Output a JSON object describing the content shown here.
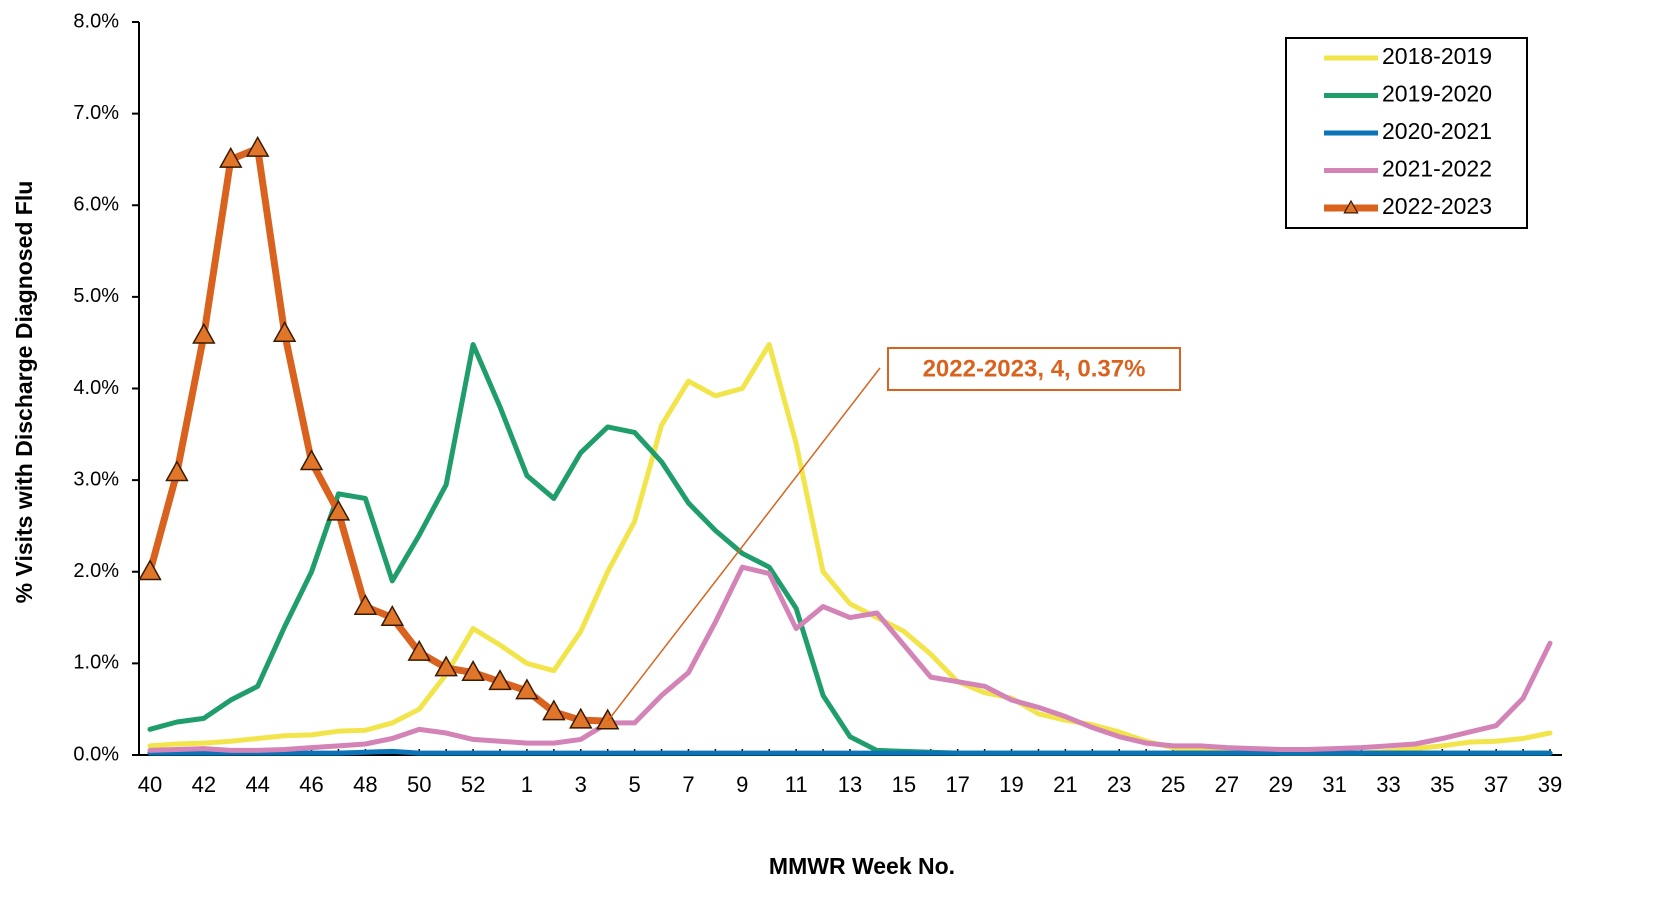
{
  "chart_data": {
    "type": "line",
    "y_label": "% Visits with Discharge Diagnosed Flu",
    "x_label": "MMWR Week No.",
    "annotation": "2022-2023, 4, 0.37%",
    "categories": [
      "40",
      null,
      "42",
      null,
      "44",
      null,
      "46",
      null,
      "48",
      null,
      "50",
      null,
      "52",
      null,
      "1",
      null,
      "3",
      null,
      "5",
      null,
      "7",
      null,
      "9",
      null,
      "11",
      null,
      "13",
      null,
      "15",
      null,
      "17",
      null,
      "19",
      null,
      "21",
      null,
      "23",
      null,
      "25",
      null,
      "27",
      null,
      "29",
      null,
      "31",
      null,
      "33",
      null,
      "35",
      null,
      "37",
      null,
      "39"
    ],
    "ylim": [
      0,
      8
    ],
    "yticks": [
      {
        "value": 0,
        "label": "0.0%"
      },
      {
        "value": 1,
        "label": "1.0%"
      },
      {
        "value": 2,
        "label": "2.0%"
      },
      {
        "value": 3,
        "label": "3.0%"
      },
      {
        "value": 4,
        "label": "4.0%"
      },
      {
        "value": 5,
        "label": "5.0%"
      },
      {
        "value": 6,
        "label": "6.0%"
      },
      {
        "value": 7,
        "label": "7.0%"
      },
      {
        "value": 8,
        "label": "8.0%"
      }
    ],
    "legend": "upper right",
    "series": [
      {
        "name": "2018-2019",
        "color": "#f2e54b",
        "values": [
          0.1,
          0.12,
          0.13,
          0.15,
          0.18,
          0.21,
          0.22,
          0.26,
          0.27,
          0.35,
          0.5,
          0.88,
          1.38,
          1.2,
          1.0,
          0.92,
          1.35,
          2.0,
          2.55,
          3.6,
          4.08,
          3.92,
          4.0,
          4.48,
          3.4,
          2.0,
          1.65,
          1.5,
          1.35,
          1.1,
          0.8,
          0.68,
          0.62,
          0.45,
          0.38,
          0.33,
          0.25,
          0.15,
          0.08,
          0.05,
          0.04,
          0.03,
          0.02,
          0.02,
          0.02,
          0.02,
          0.04,
          0.07,
          0.1,
          0.14,
          0.15,
          0.18,
          0.24
        ]
      },
      {
        "name": "2019-2020",
        "color": "#1f9e6b",
        "values": [
          0.28,
          0.36,
          0.4,
          0.6,
          0.75,
          1.4,
          2.0,
          2.85,
          2.8,
          1.9,
          2.4,
          2.95,
          4.48,
          3.8,
          3.05,
          2.8,
          3.3,
          3.58,
          3.52,
          3.2,
          2.75,
          2.45,
          2.2,
          2.05,
          1.6,
          0.65,
          0.2,
          0.05,
          0.04,
          0.03,
          0.02,
          0.02,
          0.02,
          0.02,
          0.02,
          0.02,
          0.02,
          0.02,
          0.02,
          0.02,
          0.02,
          0.02,
          0.02,
          0.02,
          0.02,
          0.02,
          0.02,
          0.02,
          0.02,
          0.02,
          0.02,
          0.02,
          0.02
        ]
      },
      {
        "name": "2020-2021",
        "color": "#0b73b7",
        "values": [
          0.02,
          0.02,
          0.02,
          0.02,
          0.02,
          0.02,
          0.02,
          0.02,
          0.03,
          0.04,
          0.02,
          0.02,
          0.02,
          0.02,
          0.02,
          0.02,
          0.02,
          0.02,
          0.02,
          0.02,
          0.02,
          0.02,
          0.02,
          0.02,
          0.02,
          0.02,
          0.02,
          0.02,
          0.02,
          0.02,
          0.02,
          0.02,
          0.02,
          0.02,
          0.02,
          0.02,
          0.02,
          0.02,
          0.02,
          0.02,
          0.02,
          0.02,
          0.02,
          0.02,
          0.02,
          0.02,
          0.02,
          0.02,
          0.02,
          0.02,
          0.02,
          0.02,
          0.02
        ]
      },
      {
        "name": "2021-2022",
        "color": "#d383b6",
        "values": [
          0.05,
          0.06,
          0.07,
          0.05,
          0.05,
          0.06,
          0.08,
          0.1,
          0.12,
          0.18,
          0.28,
          0.24,
          0.17,
          0.15,
          0.13,
          0.13,
          0.17,
          0.35,
          0.35,
          0.65,
          0.9,
          1.45,
          2.05,
          1.98,
          1.38,
          1.62,
          1.5,
          1.55,
          1.2,
          0.85,
          0.8,
          0.75,
          0.6,
          0.52,
          0.42,
          0.3,
          0.2,
          0.13,
          0.1,
          0.1,
          0.08,
          0.07,
          0.06,
          0.06,
          0.07,
          0.08,
          0.1,
          0.12,
          0.18,
          0.25,
          0.32,
          0.62,
          1.22
        ]
      },
      {
        "name": "2022-2023",
        "color": "#d9631e",
        "marker": "triangle",
        "values": [
          2.0,
          3.08,
          4.58,
          6.5,
          6.62,
          4.6,
          3.2,
          2.65,
          1.62,
          1.5,
          1.12,
          0.95,
          0.9,
          0.8,
          0.7,
          0.47,
          0.38,
          0.37,
          null,
          null,
          null,
          null,
          null,
          null,
          null,
          null,
          null,
          null,
          null,
          null,
          null,
          null,
          null,
          null,
          null,
          null,
          null,
          null,
          null,
          null,
          null,
          null,
          null,
          null,
          null,
          null,
          null,
          null,
          null,
          null,
          null,
          null,
          null
        ]
      }
    ]
  }
}
